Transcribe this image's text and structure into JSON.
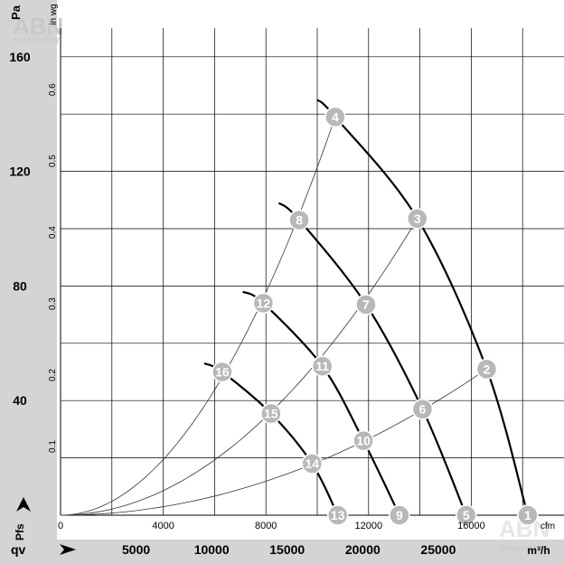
{
  "colors": {
    "band": "#d4d4d4",
    "grid": "#000000",
    "marker": "#b8b8b8",
    "curve": "#000000"
  },
  "watermark": {
    "brand": "ABN",
    "sub": "automation"
  },
  "chart_data": {
    "type": "line",
    "title": "",
    "y_label": "Pa",
    "y2_label": "in wg",
    "y_ticks": [
      "40",
      "80",
      "120",
      "160"
    ],
    "y2_ticks": [
      "0.1",
      "0.2",
      "0.3",
      "0.4",
      "0.5",
      "0.6"
    ],
    "x_label_cfm": "cfm",
    "x_ticks_cfm": [
      "0",
      "4000",
      "8000",
      "12000",
      "16000"
    ],
    "x_label_m3h": "m³/h",
    "x_ticks_m3h": [
      "5000",
      "10000",
      "15000",
      "20000",
      "25000"
    ],
    "pfs_label": "Pfs",
    "qv_label": "qv",
    "xlim_cfm": [
      0,
      19000
    ],
    "ylim_pa": [
      0,
      160
    ],
    "grid": true,
    "fan_curves": [
      {
        "points": [
          [
            "16",
            6300,
            50
          ],
          [
            "15",
            8200,
            35.5
          ],
          [
            "14",
            9800,
            18
          ],
          [
            "13",
            10800,
            0
          ]
        ],
        "start": [
          5600,
          53
        ]
      },
      {
        "points": [
          [
            "12",
            7900,
            74
          ],
          [
            "11",
            10200,
            52
          ],
          [
            "10",
            11800,
            26
          ],
          [
            "9",
            13200,
            0
          ]
        ],
        "start": [
          7100,
          78
        ]
      },
      {
        "points": [
          [
            "8",
            9300,
            103
          ],
          [
            "7",
            11900,
            73.5
          ],
          [
            "6",
            14100,
            37
          ],
          [
            "5",
            15800,
            0
          ]
        ],
        "start": [
          8500,
          109
        ]
      },
      {
        "points": [
          [
            "4",
            10700,
            139
          ],
          [
            "3",
            13900,
            103.5
          ],
          [
            "2",
            16600,
            51
          ],
          [
            "1",
            18200,
            0
          ]
        ],
        "start": [
          10000,
          145
        ]
      }
    ],
    "system_curves": [
      [
        "16",
        "12",
        "8",
        "4"
      ],
      [
        "15",
        "11",
        "7",
        "3"
      ],
      [
        "14",
        "10",
        "6",
        "2"
      ]
    ]
  }
}
